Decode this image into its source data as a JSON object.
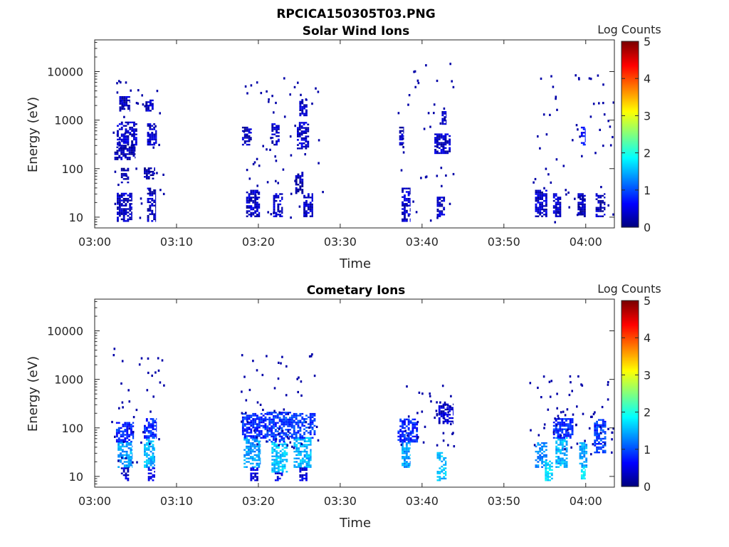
{
  "figure_title": "RPCICA150305T03.PNG",
  "colorbar": {
    "label": "Log Counts",
    "ticks": [
      "0",
      "1",
      "2",
      "3",
      "4",
      "5"
    ],
    "range": [
      0,
      5
    ],
    "colormap": "jet"
  },
  "colors": {
    "low": "#00008f",
    "mid": "#00ffff",
    "high": "#800000",
    "frame": "#262626"
  },
  "chart_data": [
    {
      "type": "heatmap",
      "title": "Solar Wind Ions",
      "xlabel": "Time",
      "ylabel": "Energy (eV)",
      "x_tick_labels": [
        "03:00",
        "03:10",
        "03:20",
        "03:30",
        "03:40",
        "03:50",
        "04:00"
      ],
      "x_ticks_min": [
        0,
        10,
        20,
        30,
        40,
        50,
        60
      ],
      "xlim_min": [
        0,
        63.5
      ],
      "y_tick_labels": [
        "10",
        "100",
        "1000",
        "10000"
      ],
      "y_ticks": [
        10,
        100,
        1000,
        10000
      ],
      "y_scale": "log",
      "ylim": [
        6,
        45000
      ],
      "clim": [
        0,
        5
      ],
      "cells": [
        {
          "t0": 2.7,
          "t1": 4.6,
          "e0": 8,
          "e1": 30,
          "v": 0.3
        },
        {
          "t0": 2.7,
          "t1": 5.2,
          "e0": 300,
          "e1": 900,
          "v": 0.35
        },
        {
          "t0": 3.0,
          "t1": 4.3,
          "e0": 1500,
          "e1": 3000,
          "v": 0.35
        },
        {
          "t0": 2.4,
          "t1": 5.0,
          "e0": 150,
          "e1": 300,
          "v": 0.2
        },
        {
          "t0": 3.2,
          "t1": 4.2,
          "e0": 50,
          "e1": 100,
          "v": 0.2
        },
        {
          "t0": 6.4,
          "t1": 7.5,
          "e0": 8,
          "e1": 40,
          "v": 0.3
        },
        {
          "t0": 6.4,
          "t1": 7.6,
          "e0": 300,
          "e1": 800,
          "v": 0.35
        },
        {
          "t0": 6.2,
          "t1": 7.2,
          "e0": 1500,
          "e1": 2500,
          "v": 0.35
        },
        {
          "t0": 6.0,
          "t1": 7.4,
          "e0": 60,
          "e1": 100,
          "v": 0.2
        },
        {
          "t0": 18.0,
          "t1": 19.2,
          "e0": 300,
          "e1": 700,
          "v": 0.3
        },
        {
          "t0": 18.5,
          "t1": 20.2,
          "e0": 10,
          "e1": 35,
          "v": 0.35
        },
        {
          "t0": 21.8,
          "t1": 23.0,
          "e0": 10,
          "e1": 30,
          "v": 0.35
        },
        {
          "t0": 21.6,
          "t1": 22.6,
          "e0": 300,
          "e1": 800,
          "v": 0.3
        },
        {
          "t0": 24.7,
          "t1": 26.2,
          "e0": 250,
          "e1": 900,
          "v": 0.35
        },
        {
          "t0": 25.0,
          "t1": 26.0,
          "e0": 1200,
          "e1": 2500,
          "v": 0.3
        },
        {
          "t0": 25.5,
          "t1": 26.7,
          "e0": 10,
          "e1": 30,
          "v": 0.35
        },
        {
          "t0": 24.5,
          "t1": 25.5,
          "e0": 30,
          "e1": 80,
          "v": 0.25
        },
        {
          "t0": 37.5,
          "t1": 38.6,
          "e0": 8,
          "e1": 40,
          "v": 0.35
        },
        {
          "t0": 37.2,
          "t1": 37.8,
          "e0": 300,
          "e1": 700,
          "v": 0.3
        },
        {
          "t0": 41.8,
          "t1": 42.8,
          "e0": 10,
          "e1": 25,
          "v": 0.35
        },
        {
          "t0": 41.5,
          "t1": 43.5,
          "e0": 200,
          "e1": 500,
          "v": 0.35
        },
        {
          "t0": 42.4,
          "t1": 43.0,
          "e0": 800,
          "e1": 1500,
          "v": 0.3
        },
        {
          "t0": 53.8,
          "t1": 55.3,
          "e0": 10,
          "e1": 35,
          "v": 0.35
        },
        {
          "t0": 56.0,
          "t1": 57.0,
          "e0": 10,
          "e1": 30,
          "v": 0.35
        },
        {
          "t0": 59.0,
          "t1": 60.0,
          "e0": 10,
          "e1": 30,
          "v": 0.3
        },
        {
          "t0": 59.4,
          "t1": 60.0,
          "e0": 300,
          "e1": 700,
          "v": 0.7
        },
        {
          "t0": 61.2,
          "t1": 62.4,
          "e0": 10,
          "e1": 30,
          "v": 0.3
        }
      ],
      "scatter_windows": [
        {
          "t0": 1.8,
          "t1": 8.5,
          "e0": 8,
          "e1": 9000
        },
        {
          "t0": 17.8,
          "t1": 27.8,
          "e0": 10,
          "e1": 8000
        },
        {
          "t0": 37.0,
          "t1": 44.0,
          "e0": 7,
          "e1": 20000
        },
        {
          "t0": 53.5,
          "t1": 63.3,
          "e0": 8,
          "e1": 9000
        }
      ]
    },
    {
      "type": "heatmap",
      "title": "Cometary Ions",
      "xlabel": "Time",
      "ylabel": "Energy (eV)",
      "x_tick_labels": [
        "03:00",
        "03:10",
        "03:20",
        "03:30",
        "03:40",
        "03:50",
        "04:00"
      ],
      "x_ticks_min": [
        0,
        10,
        20,
        30,
        40,
        50,
        60
      ],
      "xlim_min": [
        0,
        63.5
      ],
      "y_tick_labels": [
        "10",
        "100",
        "1000",
        "10000"
      ],
      "y_ticks": [
        10,
        100,
        1000,
        10000
      ],
      "y_scale": "log",
      "ylim": [
        6,
        45000
      ],
      "clim": [
        0,
        5
      ],
      "cells": [
        {
          "t0": 2.8,
          "t1": 4.6,
          "e0": 15,
          "e1": 50,
          "v": 1.4
        },
        {
          "t0": 2.6,
          "t1": 4.8,
          "e0": 50,
          "e1": 130,
          "v": 0.8
        },
        {
          "t0": 3.2,
          "t1": 4.2,
          "e0": 8,
          "e1": 15,
          "v": 0.4
        },
        {
          "t0": 6.0,
          "t1": 7.4,
          "e0": 15,
          "e1": 60,
          "v": 1.5
        },
        {
          "t0": 6.0,
          "t1": 7.6,
          "e0": 60,
          "e1": 150,
          "v": 0.8
        },
        {
          "t0": 6.5,
          "t1": 7.4,
          "e0": 8,
          "e1": 15,
          "v": 0.5
        },
        {
          "t0": 18.2,
          "t1": 20.3,
          "e0": 15,
          "e1": 60,
          "v": 1.4
        },
        {
          "t0": 18.0,
          "t1": 21.0,
          "e0": 60,
          "e1": 200,
          "v": 0.8
        },
        {
          "t0": 19.0,
          "t1": 20.0,
          "e0": 8,
          "e1": 15,
          "v": 0.4
        },
        {
          "t0": 21.6,
          "t1": 23.6,
          "e0": 12,
          "e1": 50,
          "v": 1.6
        },
        {
          "t0": 21.0,
          "t1": 24.0,
          "e0": 50,
          "e1": 200,
          "v": 0.9
        },
        {
          "t0": 22.0,
          "t1": 23.0,
          "e0": 8,
          "e1": 12,
          "v": 0.5
        },
        {
          "t0": 24.3,
          "t1": 26.5,
          "e0": 15,
          "e1": 60,
          "v": 1.5
        },
        {
          "t0": 24.0,
          "t1": 27.0,
          "e0": 60,
          "e1": 200,
          "v": 0.9
        },
        {
          "t0": 25.0,
          "t1": 26.0,
          "e0": 8,
          "e1": 15,
          "v": 0.5
        },
        {
          "t0": 37.5,
          "t1": 38.6,
          "e0": 15,
          "e1": 50,
          "v": 1.4
        },
        {
          "t0": 37.0,
          "t1": 39.5,
          "e0": 50,
          "e1": 150,
          "v": 0.8
        },
        {
          "t0": 41.8,
          "t1": 43.0,
          "e0": 8,
          "e1": 30,
          "v": 1.6
        },
        {
          "t0": 42.0,
          "t1": 43.8,
          "e0": 120,
          "e1": 300,
          "v": 0.4
        },
        {
          "t0": 53.8,
          "t1": 55.3,
          "e0": 15,
          "e1": 50,
          "v": 1.3
        },
        {
          "t0": 55.0,
          "t1": 56.0,
          "e0": 8,
          "e1": 20,
          "v": 1.7
        },
        {
          "t0": 56.3,
          "t1": 57.8,
          "e0": 15,
          "e1": 60,
          "v": 1.5
        },
        {
          "t0": 56.0,
          "t1": 58.5,
          "e0": 60,
          "e1": 150,
          "v": 0.8
        },
        {
          "t0": 59.2,
          "t1": 60.2,
          "e0": 15,
          "e1": 50,
          "v": 1.4
        },
        {
          "t0": 59.4,
          "t1": 60.0,
          "e0": 8,
          "e1": 15,
          "v": 1.8
        },
        {
          "t0": 61.0,
          "t1": 62.5,
          "e0": 30,
          "e1": 150,
          "v": 0.9
        }
      ],
      "scatter_windows": [
        {
          "t0": 2.0,
          "t1": 8.5,
          "e0": 15,
          "e1": 4500
        },
        {
          "t0": 17.8,
          "t1": 27.5,
          "e0": 40,
          "e1": 3500
        },
        {
          "t0": 37.0,
          "t1": 43.8,
          "e0": 40,
          "e1": 1200
        },
        {
          "t0": 53.0,
          "t1": 63.3,
          "e0": 30,
          "e1": 1300
        }
      ]
    }
  ]
}
